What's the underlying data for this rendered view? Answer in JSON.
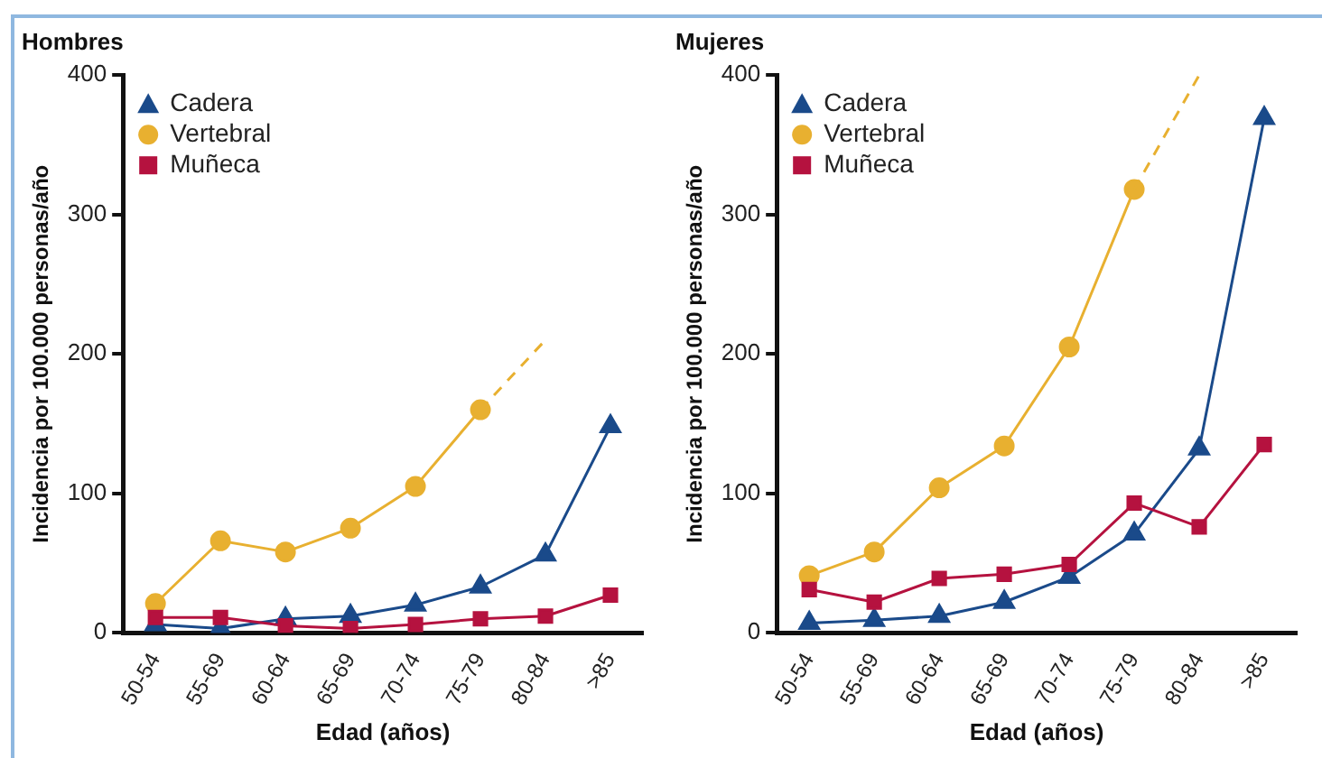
{
  "chart_data": [
    {
      "type": "line",
      "title": "Hombres",
      "xlabel": "Edad (años)",
      "ylabel": "Incidencia por 100.000 personas/año",
      "categories": [
        "50-54",
        "55-69",
        "60-64",
        "65-69",
        "70-74",
        "75-79",
        "80-84",
        ">85"
      ],
      "ylim": [
        0,
        400
      ],
      "yticks": [
        0,
        100,
        200,
        300,
        400
      ],
      "grid": false,
      "legend": "top left",
      "line_style": "solid",
      "series": [
        {
          "name": "Cadera",
          "color": "#1a4a8a",
          "marker": "triangle",
          "values": [
            6,
            3,
            10,
            12,
            20,
            33,
            56,
            148
          ]
        },
        {
          "name": "Vertebral",
          "color": "#e8b030",
          "marker": "circle",
          "values": [
            21,
            66,
            58,
            75,
            105,
            160,
            null,
            null
          ]
        },
        {
          "name": "Muñeca",
          "color": "#b5123f",
          "marker": "square",
          "values": [
            11,
            11,
            5,
            3,
            6,
            10,
            12,
            27
          ]
        },
        {
          "color": "#e8b030",
          "marker": "none",
          "line_style": "dashed",
          "values": [
            null,
            null,
            null,
            null,
            null,
            160,
            210,
            null
          ]
        }
      ]
    },
    {
      "type": "line",
      "title": "Mujeres",
      "xlabel": "Edad (años)",
      "ylabel": "Incidencia por 100.000 personas/año",
      "categories": [
        "50-54",
        "55-69",
        "60-64",
        "65-69",
        "70-74",
        "75-79",
        "80-84",
        ">85"
      ],
      "ylim": [
        0,
        400
      ],
      "yticks": [
        0,
        100,
        200,
        300,
        400
      ],
      "grid": false,
      "legend": "top left",
      "line_style": "solid",
      "series": [
        {
          "name": "Cadera",
          "color": "#1a4a8a",
          "marker": "triangle",
          "values": [
            7,
            9,
            12,
            22,
            40,
            71,
            132,
            369
          ]
        },
        {
          "name": "Vertebral",
          "color": "#e8b030",
          "marker": "circle",
          "values": [
            41,
            58,
            104,
            134,
            205,
            318,
            null,
            null
          ]
        },
        {
          "name": "Muñeca",
          "color": "#b5123f",
          "marker": "square",
          "values": [
            31,
            22,
            39,
            42,
            49,
            93,
            76,
            135
          ]
        },
        {
          "color": "#e8b030",
          "marker": "none",
          "line_style": "dashed",
          "values": [
            null,
            null,
            null,
            null,
            null,
            318,
            400,
            null
          ]
        }
      ]
    }
  ]
}
